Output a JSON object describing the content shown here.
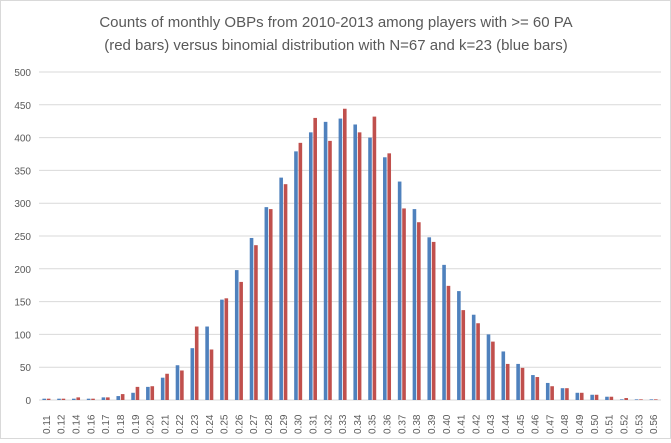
{
  "chart_data": {
    "type": "bar",
    "title_lines": [
      "Counts of monthly OBPs from 2010-2013  among players with >= 60 PA",
      "(red bars) versus binomial distribution  with N=67 and k=23 (blue bars)"
    ],
    "xlabel": "",
    "ylabel": "",
    "ylim": [
      0,
      500
    ],
    "yticks": [
      0,
      50,
      100,
      150,
      200,
      250,
      300,
      350,
      400,
      450,
      500
    ],
    "grid": true,
    "legend": "none",
    "categories": [
      "0.11",
      "0.12",
      "0.14",
      "0.16",
      "0.17",
      "0.18",
      "0.19",
      "0.20",
      "0.21",
      "0.22",
      "0.23",
      "0.24",
      "0.25",
      "0.26",
      "0.27",
      "0.28",
      "0.29",
      "0.30",
      "0.31",
      "0.32",
      "0.33",
      "0.34",
      "0.35",
      "0.36",
      "0.37",
      "0.38",
      "0.39",
      "0.40",
      "0.41",
      "0.42",
      "0.43",
      "0.44",
      "0.45",
      "0.46",
      "0.47",
      "0.48",
      "0.49",
      "0.50",
      "0.51",
      "0.52",
      "0.53",
      "0.56"
    ],
    "series": [
      {
        "color": "#4f81bd",
        "values": [
          2,
          2,
          2,
          2,
          4,
          6,
          11,
          20,
          34,
          53,
          79,
          112,
          153,
          198,
          247,
          294,
          339,
          379,
          408,
          424,
          429,
          420,
          400,
          370,
          333,
          291,
          248,
          206,
          166,
          130,
          100,
          74,
          55,
          38,
          26,
          18,
          11,
          8,
          5,
          1,
          1,
          1
        ]
      },
      {
        "color": "#c0504d",
        "values": [
          2,
          2,
          4,
          2,
          4,
          9,
          20,
          21,
          40,
          45,
          112,
          77,
          155,
          180,
          236,
          291,
          329,
          392,
          430,
          395,
          444,
          408,
          432,
          376,
          292,
          271,
          241,
          174,
          137,
          117,
          89,
          55,
          49,
          35,
          21,
          18,
          11,
          8,
          5,
          3,
          1,
          1
        ]
      }
    ]
  },
  "colors": {
    "grid": "#d9d9d9",
    "text": "#595959"
  }
}
